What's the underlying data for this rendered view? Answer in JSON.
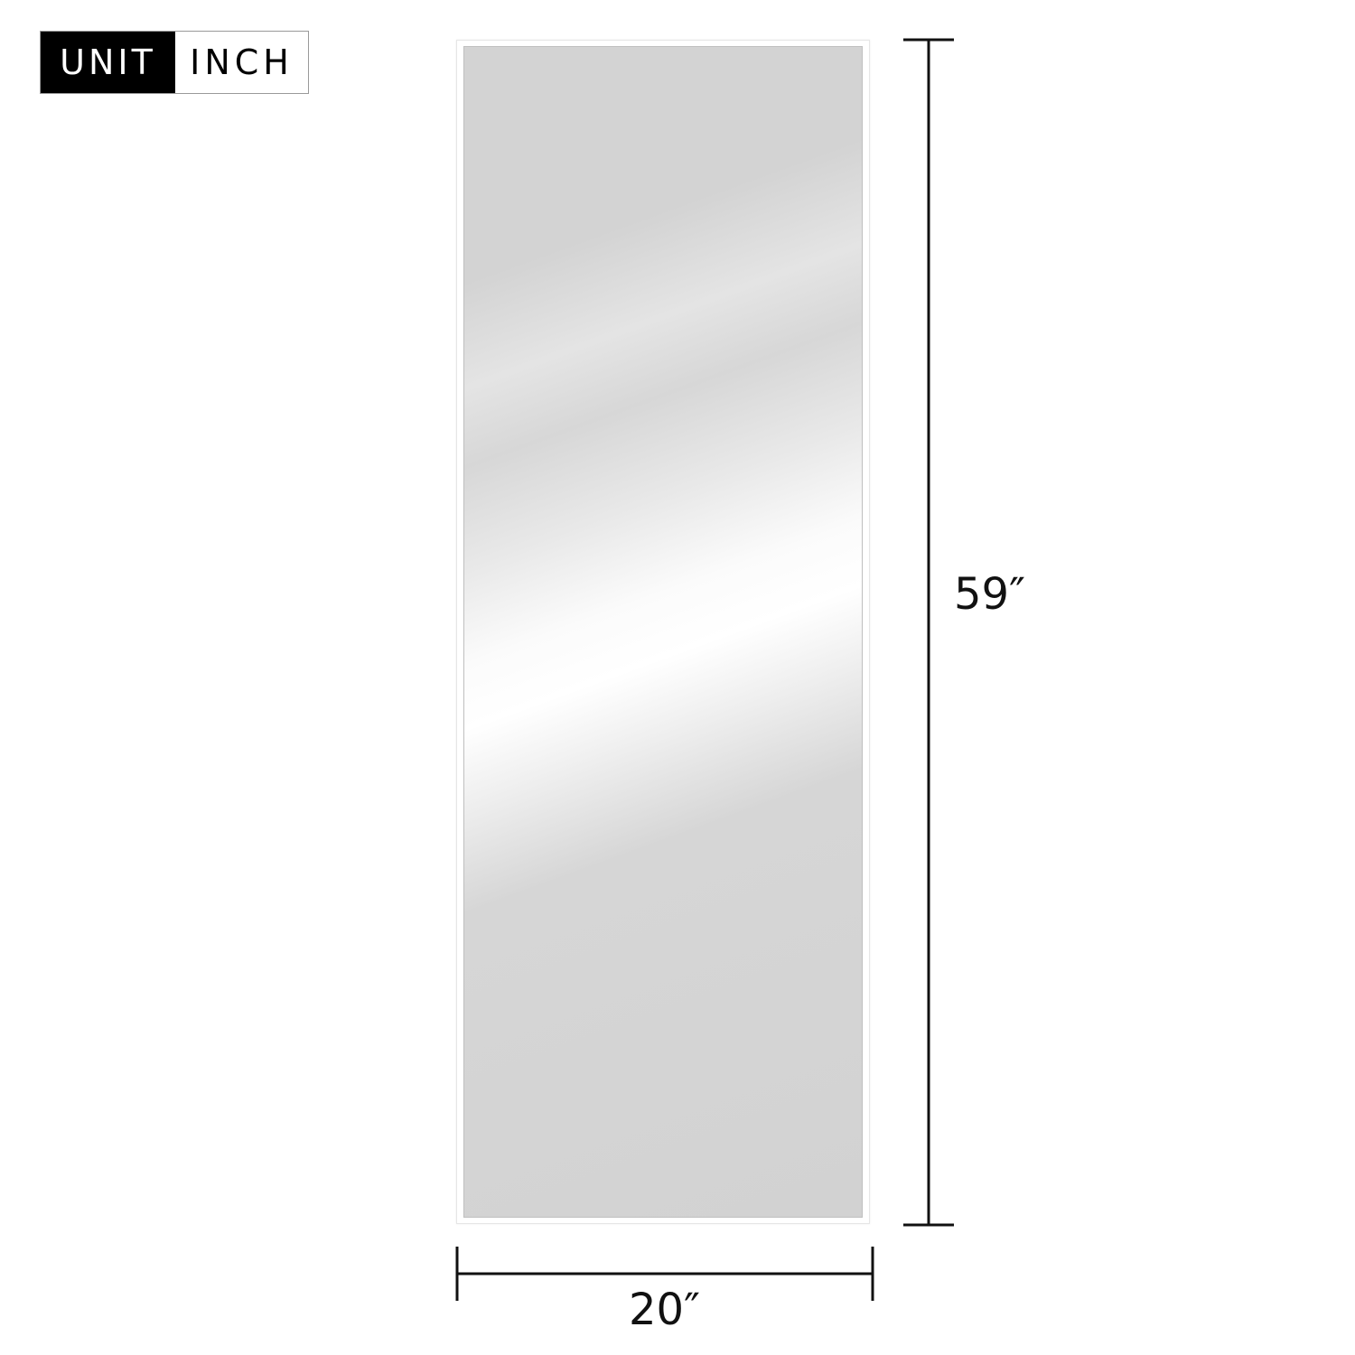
{
  "unit_badge": {
    "label": "UNIT",
    "value": "INCH"
  },
  "product": {
    "type": "full-length mirror",
    "frame_color": "#ffffff"
  },
  "dimensions": {
    "height": "59″",
    "width": "20″"
  }
}
